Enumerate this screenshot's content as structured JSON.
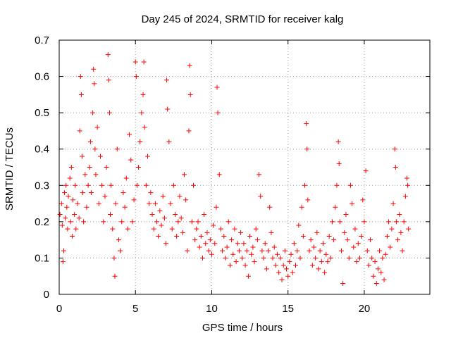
{
  "chart_data": {
    "type": "scatter",
    "title": "Day 245 of 2024, SRMTID for receiver kalg",
    "xlabel": "GPS time / hours",
    "ylabel": "SRMTID / TECUs",
    "xlim": [
      0,
      24.3
    ],
    "ylim": [
      0,
      0.7
    ],
    "x_ticks": [
      0,
      5,
      10,
      15,
      20
    ],
    "x_tick_labels": [
      "0",
      "5",
      "10",
      "15",
      "20"
    ],
    "y_ticks": [
      0,
      0.1,
      0.2,
      0.3,
      0.4,
      0.5,
      0.6,
      0.7
    ],
    "y_tick_labels": [
      "0",
      "0.1",
      "0.2",
      "0.3",
      "0.4",
      "0.5",
      "0.6",
      "0.7"
    ],
    "grid": true,
    "marker": "+",
    "color": "#ff0000",
    "series": [
      {
        "name": "SRMTID",
        "points": [
          [
            0.05,
            0.22
          ],
          [
            0.15,
            0.25
          ],
          [
            0.2,
            0.19
          ],
          [
            0.25,
            0.09
          ],
          [
            0.3,
            0.12
          ],
          [
            0.35,
            0.28
          ],
          [
            0.4,
            0.21
          ],
          [
            0.45,
            0.3
          ],
          [
            0.5,
            0.24
          ],
          [
            0.55,
            0.18
          ],
          [
            0.6,
            0.27
          ],
          [
            0.7,
            0.32
          ],
          [
            0.75,
            0.2
          ],
          [
            0.8,
            0.35
          ],
          [
            0.85,
            0.16
          ],
          [
            0.9,
            0.26
          ],
          [
            1.0,
            0.22
          ],
          [
            1.05,
            0.3
          ],
          [
            1.1,
            0.18
          ],
          [
            1.2,
            0.25
          ],
          [
            1.3,
            0.21
          ],
          [
            1.35,
            0.45
          ],
          [
            1.4,
            0.6
          ],
          [
            1.45,
            0.55
          ],
          [
            1.5,
            0.38
          ],
          [
            1.55,
            0.28
          ],
          [
            1.6,
            0.2
          ],
          [
            1.7,
            0.33
          ],
          [
            1.8,
            0.24
          ],
          [
            1.9,
            0.3
          ],
          [
            2.0,
            0.35
          ],
          [
            2.05,
            0.42
          ],
          [
            2.1,
            0.28
          ],
          [
            2.2,
            0.5
          ],
          [
            2.25,
            0.62
          ],
          [
            2.3,
            0.58
          ],
          [
            2.35,
            0.4
          ],
          [
            2.4,
            0.33
          ],
          [
            2.5,
            0.46
          ],
          [
            2.6,
            0.25
          ],
          [
            2.7,
            0.38
          ],
          [
            2.8,
            0.3
          ],
          [
            2.9,
            0.2
          ],
          [
            3.0,
            0.27
          ],
          [
            3.1,
            0.35
          ],
          [
            3.2,
            0.66
          ],
          [
            3.25,
            0.59
          ],
          [
            3.3,
            0.5
          ],
          [
            3.35,
            0.22
          ],
          [
            3.4,
            0.3
          ],
          [
            3.5,
            0.18
          ],
          [
            3.6,
            0.1
          ],
          [
            3.65,
            0.05
          ],
          [
            3.7,
            0.25
          ],
          [
            3.8,
            0.4
          ],
          [
            3.9,
            0.15
          ],
          [
            4.0,
            0.12
          ],
          [
            4.1,
            0.2
          ],
          [
            4.2,
            0.28
          ],
          [
            4.3,
            0.24
          ],
          [
            4.4,
            0.32
          ],
          [
            4.5,
            0.18
          ],
          [
            4.6,
            0.44
          ],
          [
            4.7,
            0.37
          ],
          [
            4.8,
            0.2
          ],
          [
            4.9,
            0.26
          ],
          [
            5.0,
            0.64
          ],
          [
            5.05,
            0.6
          ],
          [
            5.1,
            0.3
          ],
          [
            5.2,
            0.35
          ],
          [
            5.3,
            0.42
          ],
          [
            5.4,
            0.5
          ],
          [
            5.5,
            0.55
          ],
          [
            5.55,
            0.64
          ],
          [
            5.6,
            0.46
          ],
          [
            5.7,
            0.3
          ],
          [
            5.8,
            0.38
          ],
          [
            5.9,
            0.25
          ],
          [
            6.0,
            0.28
          ],
          [
            6.1,
            0.22
          ],
          [
            6.2,
            0.18
          ],
          [
            6.3,
            0.25
          ],
          [
            6.4,
            0.2
          ],
          [
            6.5,
            0.16
          ],
          [
            6.6,
            0.23
          ],
          [
            6.7,
            0.19
          ],
          [
            6.8,
            0.27
          ],
          [
            6.9,
            0.21
          ],
          [
            7.0,
            0.14
          ],
          [
            7.05,
            0.59
          ],
          [
            7.1,
            0.51
          ],
          [
            7.2,
            0.42
          ],
          [
            7.3,
            0.25
          ],
          [
            7.4,
            0.18
          ],
          [
            7.5,
            0.3
          ],
          [
            7.6,
            0.22
          ],
          [
            7.7,
            0.16
          ],
          [
            7.8,
            0.2
          ],
          [
            7.9,
            0.27
          ],
          [
            8.0,
            0.21
          ],
          [
            8.1,
            0.17
          ],
          [
            8.2,
            0.33
          ],
          [
            8.3,
            0.26
          ],
          [
            8.4,
            0.12
          ],
          [
            8.5,
            0.45
          ],
          [
            8.55,
            0.63
          ],
          [
            8.6,
            0.55
          ],
          [
            8.7,
            0.2
          ],
          [
            8.8,
            0.3
          ],
          [
            8.9,
            0.15
          ],
          [
            9.0,
            0.18
          ],
          [
            9.1,
            0.2
          ],
          [
            9.2,
            0.13
          ],
          [
            9.3,
            0.16
          ],
          [
            9.4,
            0.1
          ],
          [
            9.5,
            0.22
          ],
          [
            9.6,
            0.14
          ],
          [
            9.7,
            0.17
          ],
          [
            9.8,
            0.12
          ],
          [
            9.9,
            0.15
          ],
          [
            10.0,
            0.11
          ],
          [
            10.1,
            0.19
          ],
          [
            10.2,
            0.14
          ],
          [
            10.3,
            0.24
          ],
          [
            10.35,
            0.57
          ],
          [
            10.4,
            0.5
          ],
          [
            10.5,
            0.33
          ],
          [
            10.6,
            0.18
          ],
          [
            10.7,
            0.12
          ],
          [
            10.8,
            0.16
          ],
          [
            10.9,
            0.1
          ],
          [
            11.0,
            0.13
          ],
          [
            11.1,
            0.2
          ],
          [
            11.2,
            0.08
          ],
          [
            11.3,
            0.15
          ],
          [
            11.4,
            0.11
          ],
          [
            11.5,
            0.18
          ],
          [
            11.6,
            0.09
          ],
          [
            11.7,
            0.14
          ],
          [
            11.8,
            0.12
          ],
          [
            11.9,
            0.17
          ],
          [
            12.0,
            0.1
          ],
          [
            12.1,
            0.14
          ],
          [
            12.2,
            0.08
          ],
          [
            12.3,
            0.12
          ],
          [
            12.4,
            0.05
          ],
          [
            12.5,
            0.16
          ],
          [
            12.6,
            0.11
          ],
          [
            12.7,
            0.13
          ],
          [
            12.8,
            0.09
          ],
          [
            12.9,
            0.18
          ],
          [
            13.0,
            0.15
          ],
          [
            13.1,
            0.33
          ],
          [
            13.2,
            0.27
          ],
          [
            13.3,
            0.12
          ],
          [
            13.4,
            0.1
          ],
          [
            13.5,
            0.14
          ],
          [
            13.6,
            0.07
          ],
          [
            13.7,
            0.12
          ],
          [
            13.8,
            0.24
          ],
          [
            13.9,
            0.17
          ],
          [
            14.0,
            0.1
          ],
          [
            14.1,
            0.13
          ],
          [
            14.2,
            0.08
          ],
          [
            14.3,
            0.11
          ],
          [
            14.4,
            0.06
          ],
          [
            14.5,
            0.1
          ],
          [
            14.6,
            0.04
          ],
          [
            14.7,
            0.08
          ],
          [
            14.8,
            0.12
          ],
          [
            14.9,
            0.07
          ],
          [
            15.0,
            0.05
          ],
          [
            15.1,
            0.09
          ],
          [
            15.2,
            0.11
          ],
          [
            15.3,
            0.06
          ],
          [
            15.4,
            0.14
          ],
          [
            15.5,
            0.08
          ],
          [
            15.6,
            0.12
          ],
          [
            15.7,
            0.19
          ],
          [
            15.8,
            0.1
          ],
          [
            15.9,
            0.24
          ],
          [
            16.0,
            0.16
          ],
          [
            16.1,
            0.3
          ],
          [
            16.2,
            0.47
          ],
          [
            16.25,
            0.4
          ],
          [
            16.3,
            0.26
          ],
          [
            16.4,
            0.12
          ],
          [
            16.5,
            0.15
          ],
          [
            16.6,
            0.08
          ],
          [
            16.7,
            0.13
          ],
          [
            16.8,
            0.1
          ],
          [
            16.9,
            0.17
          ],
          [
            17.0,
            0.07
          ],
          [
            17.1,
            0.12
          ],
          [
            17.2,
            0.09
          ],
          [
            17.3,
            0.14
          ],
          [
            17.4,
            0.06
          ],
          [
            17.5,
            0.11
          ],
          [
            17.6,
            0.09
          ],
          [
            17.7,
            0.16
          ],
          [
            17.8,
            0.1
          ],
          [
            17.9,
            0.2
          ],
          [
            18.0,
            0.15
          ],
          [
            18.1,
            0.24
          ],
          [
            18.2,
            0.3
          ],
          [
            18.3,
            0.42
          ],
          [
            18.35,
            0.36
          ],
          [
            18.4,
            0.2
          ],
          [
            18.5,
            0.12
          ],
          [
            18.6,
            0.03
          ],
          [
            18.7,
            0.17
          ],
          [
            18.8,
            0.22
          ],
          [
            18.9,
            0.15
          ],
          [
            19.0,
            0.1
          ],
          [
            19.1,
            0.3
          ],
          [
            19.2,
            0.25
          ],
          [
            19.3,
            0.13
          ],
          [
            19.4,
            0.18
          ],
          [
            19.5,
            0.09
          ],
          [
            19.6,
            0.14
          ],
          [
            19.7,
            0.1
          ],
          [
            19.8,
            0.16
          ],
          [
            19.9,
            0.26
          ],
          [
            20.0,
            0.2
          ],
          [
            20.1,
            0.34
          ],
          [
            20.2,
            0.12
          ],
          [
            20.3,
            0.08
          ],
          [
            20.4,
            0.15
          ],
          [
            20.5,
            0.1
          ],
          [
            20.6,
            0.05
          ],
          [
            20.7,
            0.09
          ],
          [
            20.8,
            0.03
          ],
          [
            20.9,
            0.07
          ],
          [
            21.0,
            0.12
          ],
          [
            21.1,
            0.06
          ],
          [
            21.2,
            0.1
          ],
          [
            21.3,
            0.04
          ],
          [
            21.4,
            0.11
          ],
          [
            21.5,
            0.16
          ],
          [
            21.6,
            0.2
          ],
          [
            21.7,
            0.13
          ],
          [
            21.8,
            0.18
          ],
          [
            21.9,
            0.25
          ],
          [
            22.0,
            0.4
          ],
          [
            22.05,
            0.35
          ],
          [
            22.1,
            0.2
          ],
          [
            22.2,
            0.15
          ],
          [
            22.3,
            0.22
          ],
          [
            22.4,
            0.17
          ],
          [
            22.5,
            0.12
          ],
          [
            22.6,
            0.2
          ],
          [
            22.7,
            0.27
          ],
          [
            22.8,
            0.32
          ],
          [
            22.85,
            0.3
          ],
          [
            22.9,
            0.18
          ]
        ]
      }
    ]
  }
}
